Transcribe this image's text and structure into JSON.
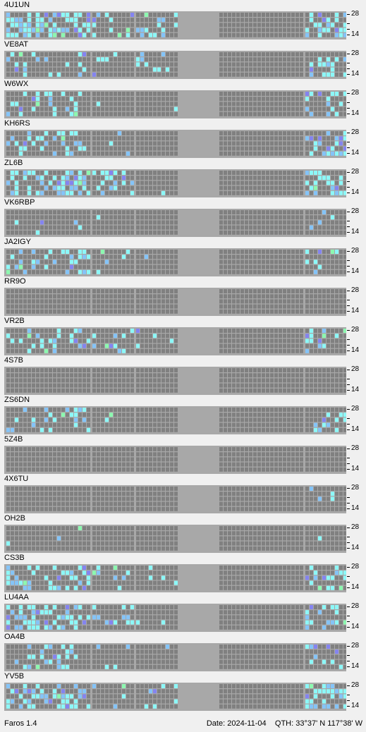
{
  "app": {
    "name": "Faros 1.4"
  },
  "status": {
    "date_label": "Date:",
    "date": "2024-11-04",
    "qth_label": "QTH:",
    "qth": "33°37' N  117°38' W"
  },
  "axis": {
    "top_label": "28",
    "bottom_label": "14"
  },
  "colors": {
    "panel": "#a8a8a8",
    "cell_empty": "#808080",
    "cell_gridline": "#6a6a6a",
    "detect_strong": "#8cf8f8",
    "detect_medium": "#84c4f8",
    "detect_weak": "#8484f0",
    "detect_green": "#8cf8b0"
  },
  "stations": [
    {
      "callsign": "4U1UN",
      "activity": [
        0.55,
        0.15,
        0.25,
        0.0,
        0.55
      ]
    },
    {
      "callsign": "VE8AT",
      "activity": [
        0.15,
        0.08,
        0.08,
        0.0,
        0.25
      ]
    },
    {
      "callsign": "W6WX",
      "activity": [
        0.22,
        0.05,
        0.05,
        0.0,
        0.35
      ]
    },
    {
      "callsign": "KH6RS",
      "activity": [
        0.3,
        0.1,
        0.0,
        0.0,
        0.45
      ]
    },
    {
      "callsign": "ZL6B",
      "activity": [
        0.45,
        0.3,
        0.05,
        0.0,
        0.35
      ]
    },
    {
      "callsign": "VK6RBP",
      "activity": [
        0.08,
        0.04,
        0.0,
        0.0,
        0.12
      ]
    },
    {
      "callsign": "JA2IGY",
      "activity": [
        0.3,
        0.1,
        0.03,
        0.0,
        0.18
      ]
    },
    {
      "callsign": "RR9O",
      "activity": [
        0.03,
        0.0,
        0.0,
        0.0,
        0.0
      ]
    },
    {
      "callsign": "VR2B",
      "activity": [
        0.3,
        0.1,
        0.06,
        0.0,
        0.2
      ]
    },
    {
      "callsign": "4S7B",
      "activity": [
        0.0,
        0.0,
        0.0,
        0.0,
        0.0
      ]
    },
    {
      "callsign": "ZS6DN",
      "activity": [
        0.28,
        0.06,
        0.0,
        0.0,
        0.25
      ]
    },
    {
      "callsign": "5Z4B",
      "activity": [
        0.0,
        0.0,
        0.0,
        0.0,
        0.0
      ]
    },
    {
      "callsign": "4X6TU",
      "activity": [
        0.01,
        0.0,
        0.0,
        0.0,
        0.02
      ]
    },
    {
      "callsign": "OH2B",
      "activity": [
        0.03,
        0.0,
        0.0,
        0.0,
        0.02
      ]
    },
    {
      "callsign": "CS3B",
      "activity": [
        0.35,
        0.12,
        0.06,
        0.0,
        0.35
      ]
    },
    {
      "callsign": "LU4AA",
      "activity": [
        0.5,
        0.2,
        0.05,
        0.0,
        0.35
      ]
    },
    {
      "callsign": "OA4B",
      "activity": [
        0.25,
        0.1,
        0.06,
        0.0,
        0.2
      ]
    },
    {
      "callsign": "YV5B",
      "activity": [
        0.45,
        0.15,
        0.12,
        0.0,
        0.55
      ]
    }
  ]
}
